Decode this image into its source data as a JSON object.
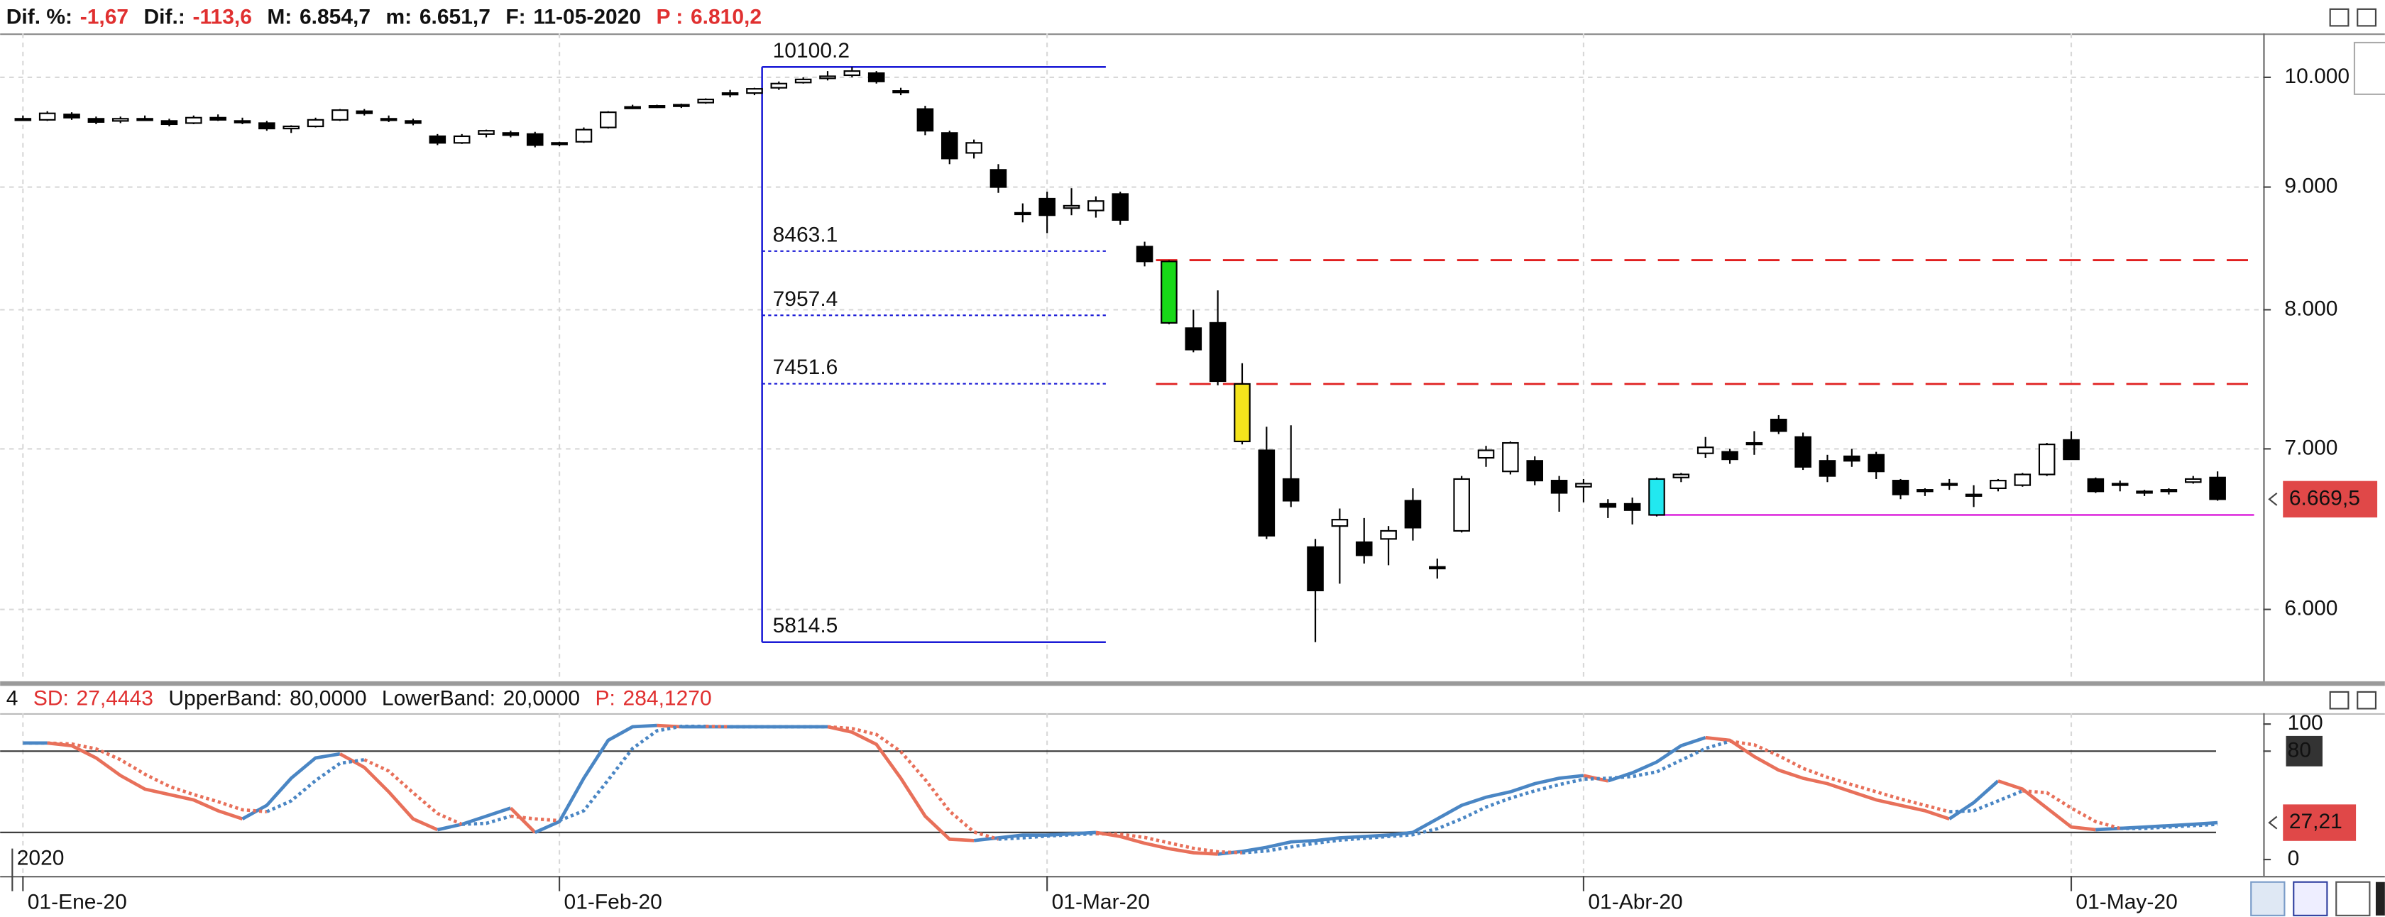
{
  "chart_data": [
    {
      "type": "candlestick",
      "header": [
        {
          "label": "Dif. %:",
          "value": "-1,67",
          "value_color": "#e03030"
        },
        {
          "label": "Dif.:",
          "value": "-113,6",
          "value_color": "#e03030"
        },
        {
          "label": "M:",
          "value": "6.854,7"
        },
        {
          "label": "m:",
          "value": "6.651,7"
        },
        {
          "label": "F:",
          "value": "11-05-2020"
        },
        {
          "label": "P :",
          "value": "6.810,2",
          "label_color": "#e03030",
          "value_color": "#e03030"
        }
      ],
      "categories": [
        "01-Ene-20",
        null,
        null,
        null,
        null,
        null,
        null,
        null,
        null,
        null,
        null,
        null,
        null,
        null,
        null,
        null,
        null,
        null,
        null,
        null,
        null,
        null,
        "01-Feb-20",
        null,
        null,
        null,
        null,
        null,
        null,
        null,
        null,
        null,
        null,
        null,
        null,
        null,
        null,
        null,
        null,
        null,
        null,
        null,
        "01-Mar-20",
        null,
        null,
        null,
        null,
        null,
        null,
        null,
        null,
        null,
        null,
        null,
        null,
        null,
        null,
        null,
        null,
        null,
        null,
        null,
        null,
        null,
        "01-Abr-20",
        null,
        null,
        null,
        null,
        null,
        null,
        null,
        null,
        null,
        null,
        null,
        null,
        null,
        null,
        null,
        null,
        null,
        null,
        null,
        "01-May-20",
        null,
        null,
        null,
        null,
        null,
        null
      ],
      "ohlc": [
        [
          9610,
          9640,
          9590,
          9600
        ],
        [
          9600,
          9680,
          9590,
          9660
        ],
        [
          9650,
          9670,
          9600,
          9620
        ],
        [
          9610,
          9630,
          9560,
          9580
        ],
        [
          9590,
          9630,
          9570,
          9610
        ],
        [
          9610,
          9640,
          9590,
          9600
        ],
        [
          9590,
          9610,
          9540,
          9560
        ],
        [
          9570,
          9640,
          9560,
          9620
        ],
        [
          9620,
          9650,
          9590,
          9600
        ],
        [
          9590,
          9620,
          9560,
          9575
        ],
        [
          9570,
          9590,
          9500,
          9520
        ],
        [
          9520,
          9550,
          9480,
          9540
        ],
        [
          9540,
          9620,
          9530,
          9600
        ],
        [
          9600,
          9700,
          9590,
          9690
        ],
        [
          9680,
          9700,
          9640,
          9660
        ],
        [
          9610,
          9640,
          9580,
          9600
        ],
        [
          9590,
          9610,
          9550,
          9570
        ],
        [
          9450,
          9470,
          9370,
          9390
        ],
        [
          9390,
          9470,
          9380,
          9450
        ],
        [
          9470,
          9510,
          9440,
          9500
        ],
        [
          9480,
          9500,
          9440,
          9460
        ],
        [
          9470,
          9490,
          9350,
          9370
        ],
        [
          9380,
          9400,
          9360,
          9390
        ],
        [
          9400,
          9530,
          9390,
          9510
        ],
        [
          9530,
          9680,
          9520,
          9670
        ],
        [
          9720,
          9740,
          9700,
          9720
        ],
        [
          9720,
          9740,
          9710,
          9730
        ],
        [
          9730,
          9750,
          9710,
          9740
        ],
        [
          9760,
          9800,
          9750,
          9790
        ],
        [
          9850,
          9880,
          9810,
          9840
        ],
        [
          9850,
          9900,
          9830,
          9890
        ],
        [
          9900,
          9960,
          9880,
          9940
        ],
        [
          9950,
          10000,
          9940,
          9980
        ],
        [
          9990,
          10060,
          9970,
          10010
        ],
        [
          10020,
          10100.2,
          10000,
          10060
        ],
        [
          10040,
          10060,
          9940,
          9960
        ],
        [
          9870,
          9900,
          9830,
          9860
        ],
        [
          9700,
          9730,
          9460,
          9500
        ],
        [
          9480,
          9500,
          9200,
          9250
        ],
        [
          9300,
          9420,
          9250,
          9390
        ],
        [
          9150,
          9200,
          8950,
          9000
        ],
        [
          8780,
          8860,
          8700,
          8780
        ],
        [
          8900,
          8960,
          8610,
          8760
        ],
        [
          8820,
          8990,
          8760,
          8840
        ],
        [
          8800,
          8920,
          8740,
          8880
        ],
        [
          8940,
          8960,
          8680,
          8720
        ],
        [
          8500,
          8540,
          8340,
          8380
        ],
        [
          8380,
          8390,
          7890,
          7900
        ],
        [
          7860,
          8000,
          7680,
          7700
        ],
        [
          7900,
          8150,
          7440,
          7470
        ],
        [
          7450,
          7600,
          7030,
          7050
        ],
        [
          6990,
          7150,
          6420,
          6440
        ],
        [
          6800,
          7160,
          6620,
          6660
        ],
        [
          6370,
          6420,
          5814.5,
          6110
        ],
        [
          6500,
          6610,
          6150,
          6540
        ],
        [
          6400,
          6550,
          6270,
          6320
        ],
        [
          6420,
          6500,
          6260,
          6470
        ],
        [
          6660,
          6740,
          6410,
          6490
        ],
        [
          6250,
          6300,
          6180,
          6240
        ],
        [
          6470,
          6820,
          6460,
          6800
        ],
        [
          6940,
          7020,
          6880,
          6990
        ],
        [
          6850,
          7050,
          6830,
          7040
        ],
        [
          6920,
          6950,
          6760,
          6790
        ],
        [
          6790,
          6820,
          6590,
          6710
        ],
        [
          6750,
          6800,
          6650,
          6770
        ],
        [
          6640,
          6670,
          6550,
          6620
        ],
        [
          6640,
          6680,
          6510,
          6600
        ],
        [
          6570,
          6810,
          6560,
          6800
        ],
        [
          6810,
          6840,
          6780,
          6830
        ],
        [
          6970,
          7080,
          6940,
          7010
        ],
        [
          6980,
          7000,
          6900,
          6930
        ],
        [
          7030,
          7120,
          6960,
          7040
        ],
        [
          7200,
          7230,
          7100,
          7120
        ],
        [
          7080,
          7110,
          6860,
          6880
        ],
        [
          6920,
          6960,
          6780,
          6820
        ],
        [
          6950,
          7000,
          6880,
          6920
        ],
        [
          6960,
          6980,
          6800,
          6850
        ],
        [
          6790,
          6800,
          6670,
          6700
        ],
        [
          6720,
          6740,
          6690,
          6730
        ],
        [
          6760,
          6800,
          6730,
          6770
        ],
        [
          6690,
          6760,
          6620,
          6700
        ],
        [
          6740,
          6800,
          6720,
          6790
        ],
        [
          6760,
          6840,
          6750,
          6830
        ],
        [
          6830,
          7040,
          6820,
          7030
        ],
        [
          7060,
          7120,
          6930,
          6930
        ],
        [
          6800,
          6810,
          6710,
          6720
        ],
        [
          6770,
          6790,
          6720,
          6760
        ],
        [
          6710,
          6730,
          6690,
          6720
        ],
        [
          6720,
          6740,
          6700,
          6730
        ],
        [
          6780,
          6820,
          6770,
          6800
        ],
        [
          6810,
          6850,
          6660,
          6669.5
        ]
      ],
      "candle_colors": [
        null,
        null,
        null,
        null,
        null,
        null,
        null,
        null,
        null,
        null,
        null,
        null,
        null,
        null,
        null,
        null,
        null,
        null,
        null,
        null,
        null,
        null,
        null,
        null,
        null,
        null,
        null,
        null,
        null,
        null,
        null,
        null,
        null,
        null,
        null,
        null,
        null,
        null,
        null,
        null,
        null,
        null,
        null,
        null,
        null,
        null,
        null,
        "#18d818",
        null,
        null,
        "#f4e41c",
        null,
        null,
        null,
        null,
        null,
        null,
        null,
        null,
        null,
        null,
        null,
        null,
        null,
        null,
        null,
        null,
        "#22e8f0",
        null,
        null,
        null,
        null,
        null,
        null,
        null,
        null,
        null,
        null,
        null,
        null,
        null,
        null,
        null,
        null,
        null,
        null,
        null,
        null,
        null,
        null,
        null
      ],
      "up_color": "#ffffff",
      "down_color": "#000000",
      "ylim": [
        5600,
        10430
      ],
      "log_scale": true,
      "yticks": [
        {
          "value": 6000,
          "label": "6.000"
        },
        {
          "value": 7000,
          "label": "7.000"
        },
        {
          "value": 8000,
          "label": "8.000"
        },
        {
          "value": 9000,
          "label": "9.000"
        },
        {
          "value": 10000,
          "label": "10.000"
        }
      ],
      "grid": true,
      "fib_levels": [
        10100.2,
        8463.1,
        7957.4,
        7451.6,
        5814.5
      ],
      "fib_color": "#1c1cd6",
      "resistance_levels": [
        8390,
        7450
      ],
      "resistance_color": "#e02020",
      "support_level": 6570,
      "support_color": "#e040e0",
      "current_price": {
        "value": 6669.5,
        "label": "6.669,5"
      },
      "current_color": "#e04848"
    },
    {
      "type": "line",
      "header": [
        {
          "label": "4"
        },
        {
          "label": "SD:",
          "value": "27,4443",
          "label_color": "#e03030",
          "value_color": "#e03030"
        },
        {
          "label": "UpperBand:",
          "value": 80,
          "value_label": "80,0000"
        },
        {
          "label": "LowerBand:",
          "value": 20,
          "value_label": "20,0000"
        },
        {
          "label": "P:",
          "value": "284,1270",
          "label_color": "#e03030",
          "value_color": "#e03030"
        }
      ],
      "series": [
        {
          "style": "solid",
          "up_color": "#4a86c4",
          "down_color": "#e8705a",
          "values": [
            86,
            86,
            84,
            75,
            62,
            52,
            48,
            44,
            36,
            30,
            40,
            60,
            75,
            78,
            68,
            50,
            30,
            22,
            26,
            32,
            38,
            20,
            28,
            60,
            88,
            98,
            99,
            98,
            98,
            98,
            98,
            98,
            98,
            98,
            94,
            85,
            60,
            32,
            15,
            14,
            16,
            18,
            18,
            19,
            20,
            17,
            12,
            8,
            5,
            4,
            6,
            9,
            13,
            14,
            16,
            17,
            18,
            20,
            30,
            40,
            46,
            50,
            56,
            60,
            62,
            58,
            64,
            72,
            84,
            90,
            88,
            76,
            66,
            60,
            56,
            50,
            44,
            40,
            36,
            30,
            42,
            58,
            52,
            38,
            24,
            22,
            23,
            24,
            25,
            26,
            27.21
          ]
        },
        {
          "style": "dotted",
          "up_color": "#4a86c4",
          "down_color": "#e8705a",
          "values": [
            86,
            86,
            85.3,
            81.7,
            73.7,
            63,
            54,
            48,
            42.7,
            36.7,
            35.3,
            43.3,
            58.3,
            71,
            73.7,
            65.3,
            49.3,
            34,
            26,
            26.7,
            32,
            30,
            28.7,
            36,
            58.7,
            82,
            95,
            98.3,
            98.3,
            98,
            98,
            98,
            98,
            98,
            96.7,
            92.3,
            79.7,
            59,
            35.7,
            20.3,
            15,
            16,
            17.3,
            18.3,
            19,
            18.7,
            16.3,
            12.3,
            8.3,
            5.7,
            5,
            6.3,
            9.3,
            12,
            14.3,
            15.7,
            17,
            18.3,
            22.7,
            30,
            38.7,
            45.3,
            50.7,
            55.3,
            59.3,
            60,
            61.3,
            64.7,
            73.3,
            82,
            87.3,
            84.7,
            76.7,
            67.3,
            60.7,
            55.3,
            50,
            44.7,
            40,
            35.3,
            36,
            43.3,
            50.7,
            49.3,
            38,
            28,
            23,
            23,
            24,
            25,
            26
          ]
        }
      ],
      "ylim": [
        -11,
        108
      ],
      "yticks": [
        0,
        80,
        100
      ],
      "current_value": {
        "value": 27.21,
        "label": "27,21"
      },
      "current_color": "#e04848",
      "year_label": "2020"
    }
  ]
}
